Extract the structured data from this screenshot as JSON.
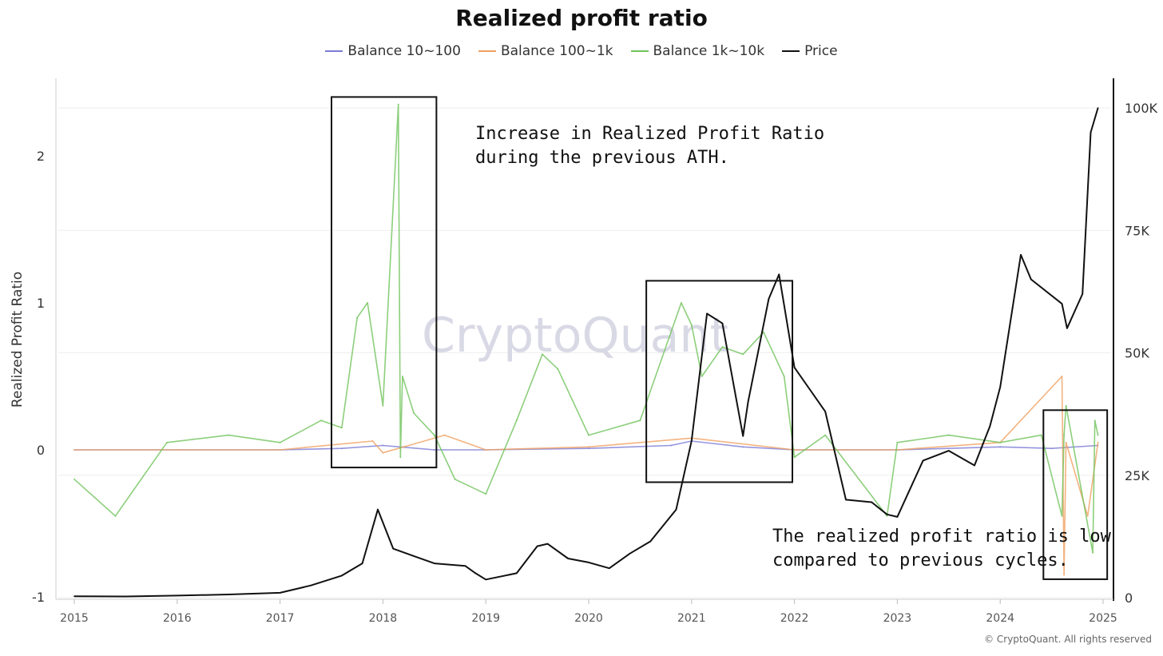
{
  "chart_data": {
    "type": "line",
    "title": "Realized profit ratio",
    "ylabel": "Realized Profit Ratio",
    "ylim": [
      -1,
      2.4
    ],
    "y_ticks": [
      "2",
      "1",
      "0",
      "-1"
    ],
    "y2lim": [
      0,
      105000
    ],
    "y2_ticks": [
      "100K",
      "75K",
      "50K",
      "25K",
      "0"
    ],
    "x_ticks": [
      "2015",
      "2016",
      "2017",
      "2018",
      "2019",
      "2020",
      "2021",
      "2022",
      "2023",
      "2024",
      "2025"
    ],
    "xlim": [
      2015.0,
      2025.0
    ],
    "grid": "horizontal",
    "legend_position": "top",
    "series": [
      {
        "name": "Balance 10~100",
        "color": "#7b7bd6",
        "axis": "left",
        "x": [
          2015.0,
          2016.0,
          2017.0,
          2017.6,
          2018.0,
          2018.5,
          2019.0,
          2020.0,
          2020.8,
          2021.0,
          2021.5,
          2022.0,
          2023.0,
          2024.0,
          2024.5,
          2024.95
        ],
        "values": [
          0.0,
          0.0,
          0.0,
          0.01,
          0.03,
          0.0,
          0.0,
          0.01,
          0.03,
          0.06,
          0.02,
          0.0,
          0.0,
          0.02,
          0.01,
          0.03
        ]
      },
      {
        "name": "Balance 100~1k",
        "color": "#f0a060",
        "axis": "left",
        "x": [
          2015.0,
          2016.0,
          2017.0,
          2017.9,
          2018.0,
          2018.6,
          2019.0,
          2020.0,
          2021.0,
          2022.0,
          2023.0,
          2024.0,
          2024.6,
          2024.62,
          2024.64,
          2024.85,
          2024.95
        ],
        "values": [
          0.0,
          0.0,
          0.0,
          0.06,
          -0.02,
          0.1,
          0.0,
          0.02,
          0.08,
          0.0,
          0.0,
          0.05,
          0.5,
          -0.85,
          0.05,
          -0.45,
          0.05
        ]
      },
      {
        "name": "Balance 1k~10k",
        "color": "#6fc35a",
        "axis": "left",
        "x": [
          2015.0,
          2015.4,
          2015.9,
          2016.5,
          2017.0,
          2017.4,
          2017.6,
          2017.75,
          2017.85,
          2018.0,
          2018.15,
          2018.17,
          2018.19,
          2018.3,
          2018.5,
          2018.7,
          2019.0,
          2019.3,
          2019.55,
          2019.7,
          2020.0,
          2020.5,
          2020.9,
          2021.0,
          2021.1,
          2021.3,
          2021.5,
          2021.7,
          2021.9,
          2022.0,
          2022.3,
          2022.9,
          2023.0,
          2023.5,
          2024.0,
          2024.4,
          2024.6,
          2024.62,
          2024.64,
          2024.9,
          2024.92,
          2024.95
        ],
        "values": [
          -0.2,
          -0.45,
          0.05,
          0.1,
          0.05,
          0.2,
          0.15,
          0.9,
          1.0,
          0.3,
          2.35,
          -0.05,
          0.5,
          0.25,
          0.1,
          -0.2,
          -0.3,
          0.2,
          0.65,
          0.55,
          0.1,
          0.2,
          1.0,
          0.85,
          0.5,
          0.7,
          0.65,
          0.8,
          0.5,
          -0.05,
          0.1,
          -0.45,
          0.05,
          0.1,
          0.05,
          0.1,
          -0.45,
          0.1,
          0.3,
          -0.7,
          0.2,
          0.1
        ]
      },
      {
        "name": "Price",
        "color": "#111111",
        "axis": "right",
        "x": [
          2015.0,
          2015.5,
          2016.0,
          2016.5,
          2017.0,
          2017.3,
          2017.6,
          2017.8,
          2017.95,
          2018.1,
          2018.3,
          2018.5,
          2018.8,
          2018.9,
          2019.0,
          2019.3,
          2019.5,
          2019.6,
          2019.8,
          2020.0,
          2020.2,
          2020.4,
          2020.6,
          2020.85,
          2021.0,
          2021.15,
          2021.3,
          2021.5,
          2021.55,
          2021.75,
          2021.85,
          2022.0,
          2022.3,
          2022.5,
          2022.75,
          2022.9,
          2023.0,
          2023.25,
          2023.5,
          2023.75,
          2023.9,
          2024.0,
          2024.2,
          2024.3,
          2024.6,
          2024.65,
          2024.8,
          2024.88,
          2024.95
        ],
        "values": [
          300,
          250,
          430,
          650,
          1000,
          2500,
          4500,
          7000,
          18000,
          10000,
          8500,
          7000,
          6500,
          5000,
          3700,
          5000,
          10500,
          11000,
          8000,
          7200,
          6000,
          9000,
          11500,
          18000,
          32000,
          58000,
          56000,
          33000,
          40000,
          61000,
          66000,
          47000,
          38000,
          20000,
          19500,
          17000,
          16500,
          28000,
          30000,
          27000,
          35000,
          43000,
          70000,
          65000,
          60000,
          55000,
          62000,
          95000,
          100000
        ]
      }
    ],
    "annotations": [
      {
        "lines": [
          "Increase in Realized Profit Ratio",
          " during the previous ATH."
        ]
      },
      {
        "lines": [
          "The realized profit ratio is low",
          "compared to previous cycles."
        ]
      }
    ],
    "highlight_boxes": [
      {
        "x": [
          2017.5,
          2018.52
        ],
        "y": [
          -0.12,
          2.4
        ]
      },
      {
        "x": [
          2020.56,
          2021.98
        ],
        "y": [
          -0.22,
          1.15
        ]
      },
      {
        "x": [
          2024.42,
          2025.04
        ],
        "y": [
          -0.88,
          0.27
        ]
      }
    ]
  },
  "watermark": "CryptoQuant",
  "copyright": "© CryptoQuant. All rights reserved"
}
